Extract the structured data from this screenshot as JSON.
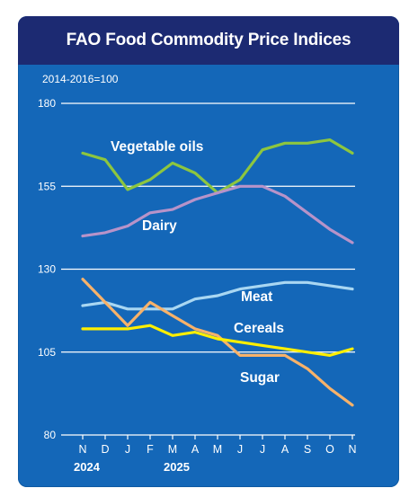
{
  "header": {
    "title": "FAO Food Commodity Price Indices"
  },
  "chart_data": {
    "type": "line",
    "title": "FAO Food Commodity Price Indices",
    "subtitle": "2014-2016=100",
    "x": [
      "N",
      "D",
      "J",
      "F",
      "M",
      "A",
      "M",
      "J",
      "J",
      "A",
      "S",
      "O",
      "N"
    ],
    "year_labels": [
      {
        "label": "2024",
        "index": 0
      },
      {
        "label": "2025",
        "index": 4
      }
    ],
    "ylim": [
      80,
      180
    ],
    "yticks": [
      80,
      105,
      130,
      155,
      180
    ],
    "grid": true,
    "series": [
      {
        "name": "Vegetable oils",
        "color": "#8dc63f",
        "values": [
          165,
          163,
          154,
          157,
          162,
          159,
          153,
          157,
          166,
          168,
          168,
          169,
          165
        ]
      },
      {
        "name": "Dairy",
        "color": "#b793c9",
        "values": [
          140,
          141,
          143,
          147,
          148,
          151,
          153,
          155,
          155,
          152,
          147,
          142,
          138
        ]
      },
      {
        "name": "Meat",
        "color": "#a9d7f2",
        "values": [
          119,
          120,
          118,
          118,
          118,
          121,
          122,
          124,
          125,
          126,
          126,
          125,
          124
        ]
      },
      {
        "name": "Cereals",
        "color": "#ffef00",
        "values": [
          112,
          112,
          112,
          113,
          110,
          111,
          109,
          108,
          107,
          106,
          105,
          104,
          106
        ]
      },
      {
        "name": "Sugar",
        "color": "#f7b26a",
        "values": [
          127,
          120,
          113,
          120,
          116,
          112,
          110,
          104,
          104,
          104,
          100,
          94,
          89
        ]
      }
    ]
  }
}
